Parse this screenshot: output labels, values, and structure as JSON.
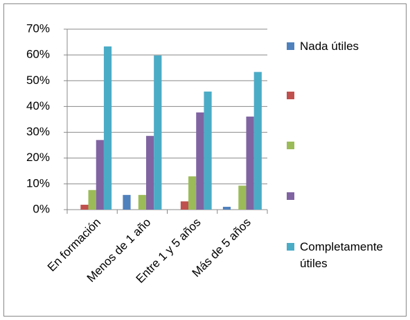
{
  "chart_data": {
    "type": "bar",
    "categories": [
      "En formación",
      "Menos de 1 año",
      "Entre 1 y 5 años",
      "Más de 5 años"
    ],
    "series": [
      {
        "name": "Nada útiles",
        "color": "#4f81bd",
        "values": [
          0,
          5.7,
          0,
          1.1
        ]
      },
      {
        "name": null,
        "color": "#c0504d",
        "values": [
          1.9,
          0,
          3.2,
          0
        ]
      },
      {
        "name": null,
        "color": "#9bbb59",
        "values": [
          7.6,
          5.7,
          12.9,
          9.3
        ]
      },
      {
        "name": null,
        "color": "#8064a2",
        "values": [
          27,
          28.6,
          37.7,
          36.1
        ]
      },
      {
        "name": "Completamente útiles",
        "color": "#4bacc6",
        "values": [
          63.3,
          59.8,
          45.8,
          53.4
        ]
      }
    ],
    "ylim": [
      0,
      70
    ],
    "yticks": [
      {
        "value": 0,
        "label": "0%"
      },
      {
        "value": 10,
        "label": "10%"
      },
      {
        "value": 20,
        "label": "20%"
      },
      {
        "value": 30,
        "label": "30%"
      },
      {
        "value": 40,
        "label": "40%"
      },
      {
        "value": 50,
        "label": "50%"
      },
      {
        "value": 60,
        "label": "60%"
      },
      {
        "value": 70,
        "label": "70%"
      }
    ],
    "grid": true,
    "legend": "right"
  }
}
